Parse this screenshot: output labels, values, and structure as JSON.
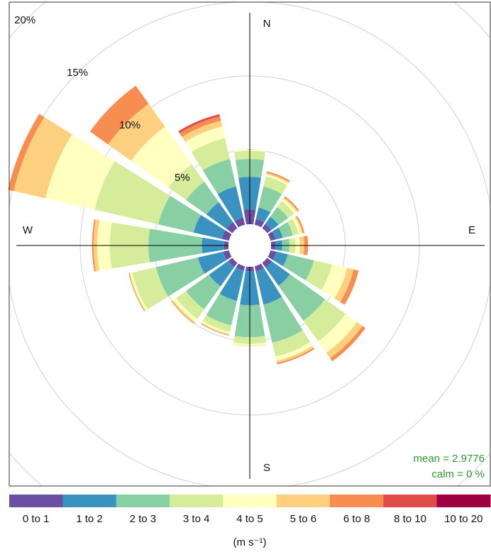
{
  "chart_data": {
    "type": "windrose",
    "directions": [
      0,
      22.5,
      45,
      67.5,
      90,
      112.5,
      135,
      157.5,
      180,
      202.5,
      225,
      247.5,
      270,
      292.5,
      315,
      337.5
    ],
    "cardinals": [
      "N",
      "E",
      "S",
      "W"
    ],
    "series": [
      {
        "name": "0 to 1",
        "color": "#6a4fa3",
        "values": [
          1.0,
          0.4,
          0.35,
          0.35,
          0.3,
          0.4,
          0.4,
          0.35,
          0.3,
          0.3,
          0.35,
          0.4,
          0.3,
          0.5,
          0.5,
          0.5
        ]
      },
      {
        "name": "1 to 2",
        "color": "#3a92c0",
        "values": [
          2.2,
          0.8,
          0.6,
          0.5,
          0.45,
          0.8,
          1.5,
          2.3,
          2.3,
          2.1,
          1.6,
          1.75,
          1.5,
          1.95,
          1.65,
          2.15
        ]
      },
      {
        "name": "2 to 3",
        "color": "#88cfa4",
        "values": [
          1.2,
          1.45,
          0.8,
          0.7,
          0.5,
          1.8,
          2.9,
          2.65,
          2.15,
          1.7,
          1.9,
          2.9,
          3.6,
          2.45,
          1.7,
          1.9
        ]
      },
      {
        "name": "3 to 4",
        "color": "#d5ed9b",
        "values": [
          0.55,
          0.7,
          0.5,
          0.4,
          0.4,
          1.25,
          1.7,
          0.95,
          0.45,
          0.45,
          0.8,
          1.65,
          2.6,
          4.4,
          1.45,
          1.45
        ]
      },
      {
        "name": "4 to 5",
        "color": "#ffffbf",
        "values": [
          0.1,
          0.15,
          0.2,
          0.2,
          0.3,
          1.05,
          0.95,
          0.3,
          0.12,
          0.15,
          0.25,
          0.15,
          0.85,
          3.4,
          3.1,
          0.8
        ]
      },
      {
        "name": "5 to 6",
        "color": "#fdd07f",
        "values": [
          0,
          0.1,
          0.1,
          0.1,
          0.3,
          0.45,
          0.45,
          0.15,
          0.03,
          0.05,
          0.1,
          0.05,
          0.25,
          2.2,
          1.9,
          0.4
        ]
      },
      {
        "name": "6 to 8",
        "color": "#f88d52",
        "values": [
          0,
          0.1,
          0.1,
          0.1,
          0.25,
          0.35,
          0.25,
          0.1,
          0,
          0.05,
          0.05,
          0.05,
          0.1,
          0.4,
          1.5,
          0.3
        ]
      },
      {
        "name": "8 to 10",
        "color": "#de4d4a",
        "values": [
          0,
          0,
          0,
          0,
          0,
          0,
          0,
          0,
          0,
          0,
          0,
          0,
          0,
          0,
          0,
          0.15
        ]
      },
      {
        "name": "10 to 20",
        "color": "#9e0142",
        "values": [
          0,
          0,
          0,
          0,
          0,
          0,
          0,
          0,
          0,
          0,
          0,
          0,
          0,
          0,
          0,
          0
        ]
      }
    ],
    "rlim": [
      0,
      20
    ],
    "rticks": [
      {
        "value": 5,
        "label": "5%"
      },
      {
        "value": 10,
        "label": "10%"
      },
      {
        "value": 15,
        "label": "15%"
      },
      {
        "value": 20,
        "label": "20%"
      }
    ],
    "grid": true,
    "annotations": [
      "mean  =  2.9776",
      "calm =  0 %"
    ],
    "legend_title": "(m s⁻¹)"
  }
}
